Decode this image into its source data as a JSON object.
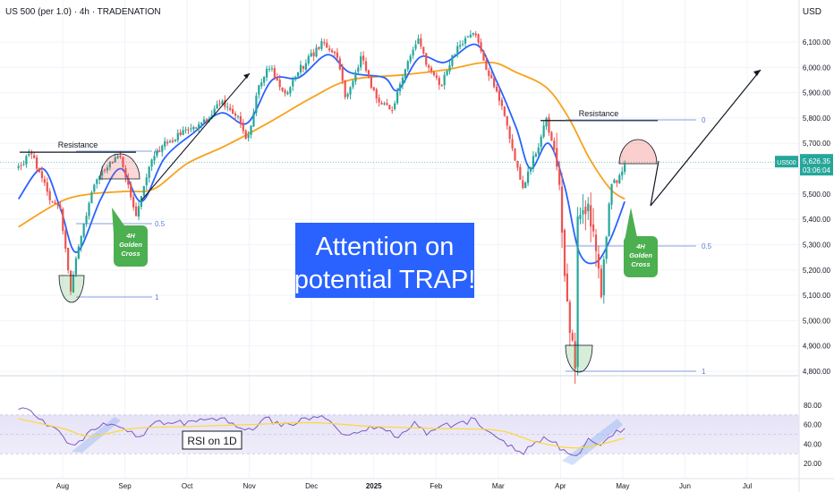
{
  "header": {
    "title": "US 500 (per 1.0) · 4h · TRADENATION",
    "currency": "USD"
  },
  "price_tag": {
    "symbol": "US500",
    "price": "5,626.35",
    "countdown": "03:06:04"
  },
  "annotations": {
    "headline_line1": "Attention on",
    "headline_line2": "potential TRAP!",
    "resistance_left": "Resistance",
    "resistance_right": "Resistance",
    "rsi_label": "RSI on 1D",
    "golden_cross_line1": "4H",
    "golden_cross_line2": "Golden",
    "golden_cross_line3": "Cross",
    "fib_left": [
      "0",
      "0.5",
      "1"
    ],
    "fib_right": [
      "0",
      "0.5",
      "1"
    ]
  },
  "colors": {
    "price_up": "#26a69a",
    "price_down": "#ef5350",
    "ma_fast": "#2962ff",
    "ma_slow": "#f7a21b",
    "headline_bg": "#2962ff",
    "golden_cross_bg": "#4caf50",
    "rsi_line": "#7e57c2",
    "rsi_ma": "#fdd835",
    "fib_line": "#5b7fd6"
  },
  "chart_data": {
    "type": "candlestick",
    "x_axis_labels": [
      "Aug",
      "Sep",
      "Oct",
      "Nov",
      "Dec",
      "2025",
      "Feb",
      "Mar",
      "Apr",
      "May",
      "Jun",
      "Jul"
    ],
    "y_ticks": [
      "6,100.00",
      "6,000.00",
      "5,900.00",
      "5,800.00",
      "5,700.00",
      "5,500.00",
      "5,400.00",
      "5,300.00",
      "5,200.00",
      "5,100.00",
      "5,000.00",
      "4,900.00",
      "4,800.00"
    ],
    "ylim": [
      4790,
      6170
    ],
    "price_path": [
      [
        "2024-07-10",
        5600
      ],
      [
        "2024-07-16",
        5660
      ],
      [
        "2024-07-22",
        5560
      ],
      [
        "2024-07-26",
        5480
      ],
      [
        "2024-07-31",
        5430
      ],
      [
        "2024-08-05",
        5120
      ],
      [
        "2024-08-09",
        5300
      ],
      [
        "2024-08-16",
        5520
      ],
      [
        "2024-08-23",
        5610
      ],
      [
        "2024-08-30",
        5650
      ],
      [
        "2024-09-06",
        5410
      ],
      [
        "2024-09-13",
        5620
      ],
      [
        "2024-09-20",
        5700
      ],
      [
        "2024-09-27",
        5730
      ],
      [
        "2024-10-04",
        5760
      ],
      [
        "2024-10-11",
        5800
      ],
      [
        "2024-10-18",
        5860
      ],
      [
        "2024-10-25",
        5820
      ],
      [
        "2024-10-31",
        5710
      ],
      [
        "2024-11-06",
        5940
      ],
      [
        "2024-11-11",
        6010
      ],
      [
        "2024-11-18",
        5890
      ],
      [
        "2024-11-25",
        5990
      ],
      [
        "2024-12-06",
        6090
      ],
      [
        "2024-12-13",
        6060
      ],
      [
        "2024-12-18",
        5880
      ],
      [
        "2024-12-26",
        6040
      ],
      [
        "2025-01-02",
        5880
      ],
      [
        "2025-01-10",
        5830
      ],
      [
        "2025-01-17",
        6000
      ],
      [
        "2025-01-23",
        6110
      ],
      [
        "2025-01-28",
        6000
      ],
      [
        "2025-02-03",
        5930
      ],
      [
        "2025-02-10",
        6070
      ],
      [
        "2025-02-19",
        6140
      ],
      [
        "2025-02-24",
        5980
      ],
      [
        "2025-03-03",
        5850
      ],
      [
        "2025-03-07",
        5720
      ],
      [
        "2025-03-13",
        5520
      ],
      [
        "2025-03-20",
        5670
      ],
      [
        "2025-03-25",
        5790
      ],
      [
        "2025-03-31",
        5610
      ],
      [
        "2025-04-04",
        5070
      ],
      [
        "2025-04-08",
        4830
      ],
      [
        "2025-04-09",
        5450
      ],
      [
        "2025-04-15",
        5410
      ],
      [
        "2025-04-21",
        5100
      ],
      [
        "2025-04-25",
        5530
      ],
      [
        "2025-04-30",
        5570
      ],
      [
        "2025-05-02",
        5626
      ]
    ],
    "ma_fast": [
      [
        "2024-07-10",
        5480
      ],
      [
        "2024-07-22",
        5600
      ],
      [
        "2024-07-31",
        5440
      ],
      [
        "2024-08-08",
        5270
      ],
      [
        "2024-08-20",
        5480
      ],
      [
        "2024-08-30",
        5600
      ],
      [
        "2024-09-09",
        5470
      ],
      [
        "2024-09-20",
        5640
      ],
      [
        "2024-10-04",
        5740
      ],
      [
        "2024-10-18",
        5820
      ],
      [
        "2024-10-31",
        5780
      ],
      [
        "2024-11-12",
        5950
      ],
      [
        "2024-11-25",
        5960
      ],
      [
        "2024-12-09",
        6050
      ],
      [
        "2024-12-20",
        5980
      ],
      [
        "2025-01-06",
        5960
      ],
      [
        "2025-01-13",
        5910
      ],
      [
        "2025-01-24",
        6040
      ],
      [
        "2025-02-05",
        6020
      ],
      [
        "2025-02-19",
        6090
      ],
      [
        "2025-02-28",
        5950
      ],
      [
        "2025-03-10",
        5760
      ],
      [
        "2025-03-17",
        5600
      ],
      [
        "2025-03-26",
        5700
      ],
      [
        "2025-04-03",
        5530
      ],
      [
        "2025-04-10",
        5270
      ],
      [
        "2025-04-18",
        5230
      ],
      [
        "2025-04-25",
        5320
      ],
      [
        "2025-05-02",
        5470
      ]
    ],
    "ma_slow": [
      [
        "2024-07-10",
        5370
      ],
      [
        "2024-07-31",
        5470
      ],
      [
        "2024-08-15",
        5500
      ],
      [
        "2024-09-01",
        5510
      ],
      [
        "2024-09-15",
        5520
      ],
      [
        "2024-10-01",
        5620
      ],
      [
        "2024-10-20",
        5690
      ],
      [
        "2024-11-10",
        5780
      ],
      [
        "2024-12-01",
        5880
      ],
      [
        "2024-12-20",
        5950
      ],
      [
        "2025-01-15",
        5970
      ],
      [
        "2025-02-05",
        5990
      ],
      [
        "2025-02-25",
        6020
      ],
      [
        "2025-03-10",
        5980
      ],
      [
        "2025-03-25",
        5920
      ],
      [
        "2025-04-05",
        5800
      ],
      [
        "2025-04-15",
        5640
      ],
      [
        "2025-04-25",
        5520
      ],
      [
        "2025-05-02",
        5480
      ]
    ],
    "projection": [
      [
        "2025-05-02",
        5626
      ],
      [
        "2025-05-10",
        5500
      ],
      [
        "2025-07-03",
        5990
      ]
    ],
    "resistance_levels": [
      5665,
      5790
    ],
    "rsi": {
      "title": "RSI on 1D",
      "ylim": [
        18,
        82
      ],
      "y_ticks": [
        "80.00",
        "60.00",
        "40.00",
        "20.00"
      ],
      "band": [
        30,
        70
      ],
      "values": [
        [
          "2024-07-10",
          78
        ],
        [
          "2024-07-17",
          70
        ],
        [
          "2024-07-24",
          62
        ],
        [
          "2024-07-31",
          55
        ],
        [
          "2024-08-05",
          38
        ],
        [
          "2024-08-12",
          48
        ],
        [
          "2024-08-19",
          60
        ],
        [
          "2024-08-26",
          64
        ],
        [
          "2024-09-03",
          52
        ],
        [
          "2024-09-09",
          50
        ],
        [
          "2024-09-16",
          60
        ],
        [
          "2024-09-23",
          64
        ],
        [
          "2024-10-01",
          62
        ],
        [
          "2024-10-10",
          64
        ],
        [
          "2024-10-18",
          66
        ],
        [
          "2024-10-31",
          52
        ],
        [
          "2024-11-08",
          68
        ],
        [
          "2024-11-15",
          60
        ],
        [
          "2024-11-22",
          62
        ],
        [
          "2024-12-06",
          70
        ],
        [
          "2024-12-12",
          62
        ],
        [
          "2024-12-18",
          48
        ],
        [
          "2024-12-26",
          56
        ],
        [
          "2025-01-06",
          54
        ],
        [
          "2025-01-13",
          48
        ],
        [
          "2025-01-22",
          62
        ],
        [
          "2025-01-27",
          52
        ],
        [
          "2025-02-05",
          58
        ],
        [
          "2025-02-19",
          66
        ],
        [
          "2025-02-24",
          54
        ],
        [
          "2025-03-04",
          42
        ],
        [
          "2025-03-13",
          30
        ],
        [
          "2025-03-20",
          40
        ],
        [
          "2025-03-25",
          46
        ],
        [
          "2025-04-01",
          36
        ],
        [
          "2025-04-08",
          24
        ],
        [
          "2025-04-14",
          44
        ],
        [
          "2025-04-21",
          40
        ],
        [
          "2025-04-28",
          52
        ],
        [
          "2025-05-02",
          57
        ]
      ],
      "ma_values": [
        [
          "2024-07-10",
          66
        ],
        [
          "2024-08-01",
          56
        ],
        [
          "2024-08-15",
          48
        ],
        [
          "2024-09-05",
          56
        ],
        [
          "2024-10-01",
          58
        ],
        [
          "2024-11-01",
          60
        ],
        [
          "2024-12-01",
          62
        ],
        [
          "2025-01-01",
          58
        ],
        [
          "2025-02-01",
          56
        ],
        [
          "2025-03-01",
          54
        ],
        [
          "2025-03-20",
          42
        ],
        [
          "2025-04-10",
          36
        ],
        [
          "2025-05-02",
          46
        ]
      ]
    }
  }
}
